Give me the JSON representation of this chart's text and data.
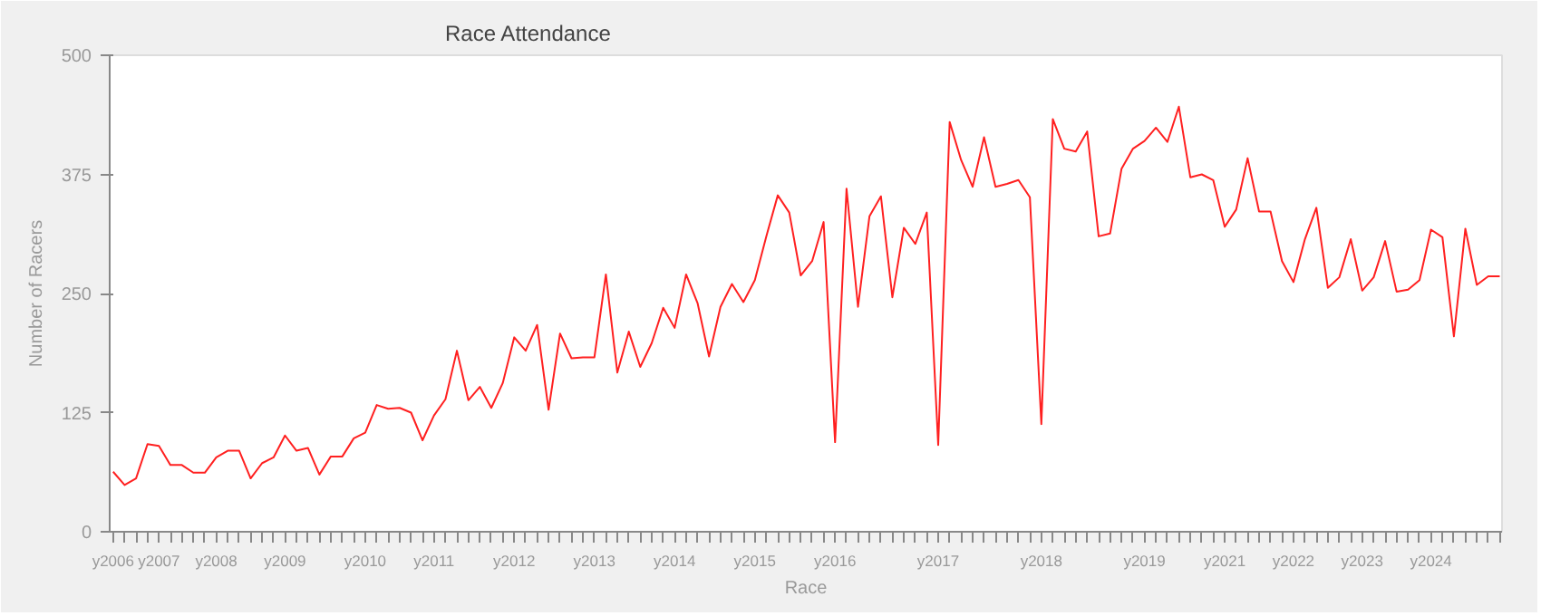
{
  "chart_data": {
    "type": "line",
    "title": "Race Attendance",
    "xlabel": "Race",
    "ylabel": "Number of Racers",
    "categories": [
      "y2006",
      null,
      null,
      null,
      "y2007",
      null,
      null,
      null,
      null,
      "y2008",
      null,
      null,
      null,
      null,
      null,
      "y2009",
      null,
      null,
      null,
      null,
      null,
      null,
      "y2010",
      null,
      null,
      null,
      null,
      null,
      "y2011",
      null,
      null,
      null,
      null,
      null,
      null,
      "y2012",
      null,
      null,
      null,
      null,
      null,
      null,
      "y2013",
      null,
      null,
      null,
      null,
      null,
      null,
      "y2014",
      null,
      null,
      null,
      null,
      null,
      null,
      "y2015",
      null,
      null,
      null,
      null,
      null,
      null,
      "y2016",
      null,
      null,
      null,
      null,
      null,
      null,
      null,
      null,
      "y2017",
      null,
      null,
      null,
      null,
      null,
      null,
      null,
      null,
      "y2018",
      null,
      null,
      null,
      null,
      null,
      null,
      null,
      null,
      "y2019",
      null,
      null,
      null,
      null,
      null,
      null,
      "y2021",
      null,
      null,
      null,
      null,
      null,
      "y2022",
      null,
      null,
      null,
      null,
      null,
      "y2023",
      null,
      null,
      null,
      null,
      null,
      "y2024",
      null,
      null,
      null,
      null,
      null,
      null
    ],
    "series": [
      {
        "color": "#ff2020",
        "values": [
          63,
          49,
          56,
          92,
          90,
          70,
          70,
          62,
          62,
          78,
          85,
          85,
          56,
          72,
          78,
          101,
          85,
          88,
          60,
          79,
          79,
          98,
          104,
          133,
          129,
          130,
          125,
          96,
          122,
          139,
          190,
          138,
          152,
          130,
          156,
          204,
          190,
          217,
          128,
          208,
          182,
          183,
          183,
          270,
          167,
          210,
          173,
          198,
          235,
          214,
          270,
          240,
          184,
          236,
          260,
          241,
          264,
          310,
          353,
          335,
          269,
          284,
          325,
          94,
          360,
          236,
          331,
          352,
          246,
          319,
          302,
          335,
          91,
          430,
          390,
          362,
          414,
          362,
          365,
          369,
          351,
          113,
          433,
          402,
          399,
          420,
          310,
          313,
          381,
          402,
          410,
          424,
          409,
          446,
          372,
          375,
          369,
          320,
          338,
          392,
          336,
          336,
          284,
          262,
          307,
          340,
          256,
          267,
          307,
          253,
          267,
          305,
          252,
          254,
          264,
          317,
          309,
          205,
          318,
          259,
          268,
          268
        ]
      }
    ],
    "ylim": [
      0,
      500
    ],
    "yticks": [
      0,
      125,
      250,
      375,
      500
    ],
    "grid": false,
    "marker": "none",
    "line_style": "solid"
  }
}
